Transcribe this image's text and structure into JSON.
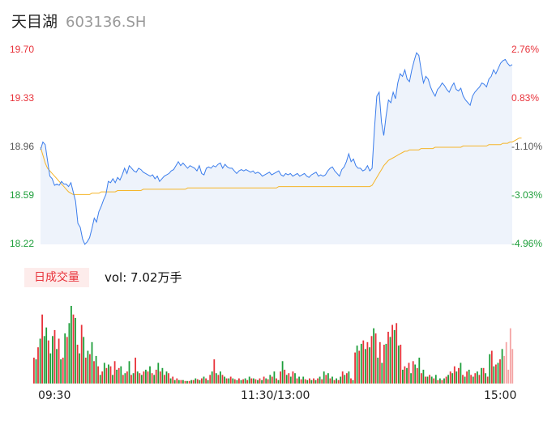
{
  "header": {
    "name": "天目湖",
    "code": "603136.SH"
  },
  "price_axis": {
    "prices": [
      "19.70",
      "19.33",
      "18.96",
      "18.59",
      "18.22"
    ],
    "percents": [
      "2.76%",
      "0.83%",
      "-1.10%",
      "-3.03%",
      "-4.96%"
    ]
  },
  "volume_panel": {
    "badge": "日成交量",
    "vol_text": "vol: 7.02万手"
  },
  "time_axis": {
    "start": "09:30",
    "mid": "11:30/13:00",
    "end": "15:00"
  },
  "colors": {
    "price_line": "#3b7dec",
    "avg_line": "#f5b52a",
    "up": "#e8323a",
    "down": "#1d9e3a",
    "flat": "#555555"
  },
  "chart_data": [
    {
      "type": "line",
      "title": "",
      "ylim": [
        18.22,
        19.7
      ],
      "grid": false,
      "series": [
        {
          "values": [
            18.94,
            19.0,
            18.98,
            18.86,
            18.74,
            18.72,
            18.67,
            18.68,
            18.67,
            18.7,
            18.68,
            18.68,
            18.66,
            18.69,
            18.62,
            18.55,
            18.38,
            18.35,
            18.26,
            18.22,
            18.24,
            18.27,
            18.34,
            18.42,
            18.39,
            18.47,
            18.51,
            18.56,
            18.6,
            18.7,
            18.69,
            18.72,
            18.69,
            18.73,
            18.71,
            18.75,
            18.8,
            18.76,
            18.82,
            18.8,
            18.78,
            18.77,
            18.8,
            18.79,
            18.77,
            18.76,
            18.75,
            18.74,
            18.75,
            18.72,
            18.74,
            18.7,
            18.72,
            18.74,
            18.75,
            18.76,
            18.78,
            18.79,
            18.82,
            18.85,
            18.82,
            18.84,
            18.82,
            18.8,
            18.82,
            18.81,
            18.8,
            18.78,
            18.82,
            18.76,
            18.75,
            18.8,
            18.81,
            18.8,
            18.82,
            18.81,
            18.83,
            18.84,
            18.8,
            18.83,
            18.81,
            18.8,
            18.8,
            18.78,
            18.76,
            18.78,
            18.79,
            18.78,
            18.79,
            18.78,
            18.77,
            18.78,
            18.76,
            18.77,
            18.76,
            18.74,
            18.75,
            18.76,
            18.77,
            18.75,
            18.76,
            18.77,
            18.78,
            18.75,
            18.74,
            18.76,
            18.75,
            18.76,
            18.74,
            18.75,
            18.76,
            18.74,
            18.75,
            18.76,
            18.74,
            18.73,
            18.75,
            18.76,
            18.77,
            18.74,
            18.75,
            18.74,
            18.75,
            18.78,
            18.8,
            18.81,
            18.78,
            18.76,
            18.74,
            18.79,
            18.81,
            18.85,
            18.91,
            18.85,
            18.87,
            18.82,
            18.8,
            18.8,
            18.78,
            18.79,
            18.82,
            18.78,
            18.8,
            19.1,
            19.35,
            19.38,
            19.15,
            19.05,
            19.2,
            19.32,
            19.3,
            19.38,
            19.33,
            19.45,
            19.52,
            19.5,
            19.55,
            19.48,
            19.46,
            19.55,
            19.62,
            19.68,
            19.66,
            19.55,
            19.45,
            19.5,
            19.48,
            19.42,
            19.38,
            19.35,
            19.4,
            19.42,
            19.45,
            19.43,
            19.4,
            19.38,
            19.42,
            19.45,
            19.4,
            19.39,
            19.41,
            19.35,
            19.32,
            19.3,
            19.28,
            19.35,
            19.38,
            19.4,
            19.42,
            19.45,
            19.44,
            19.42,
            19.48,
            19.5,
            19.55,
            19.52,
            19.56,
            19.6,
            19.62,
            19.63,
            19.6,
            19.58,
            19.59
          ]
        },
        {
          "values": [
            18.96,
            18.9,
            18.84,
            18.8,
            18.78,
            18.76,
            18.74,
            18.72,
            18.7,
            18.68,
            18.66,
            18.64,
            18.62,
            18.61,
            18.6,
            18.6,
            18.6,
            18.6,
            18.6,
            18.6,
            18.6,
            18.6,
            18.61,
            18.61,
            18.61,
            18.61,
            18.62,
            18.62,
            18.62,
            18.62,
            18.62,
            18.62,
            18.62,
            18.63,
            18.63,
            18.63,
            18.63,
            18.63,
            18.63,
            18.63,
            18.63,
            18.63,
            18.63,
            18.63,
            18.64,
            18.64,
            18.64,
            18.64,
            18.64,
            18.64,
            18.64,
            18.64,
            18.64,
            18.64,
            18.64,
            18.64,
            18.64,
            18.64,
            18.64,
            18.64,
            18.64,
            18.64,
            18.64,
            18.65,
            18.65,
            18.65,
            18.65,
            18.65,
            18.65,
            18.65,
            18.65,
            18.65,
            18.65,
            18.65,
            18.65,
            18.65,
            18.65,
            18.65,
            18.65,
            18.65,
            18.65,
            18.65,
            18.65,
            18.65,
            18.65,
            18.65,
            18.65,
            18.65,
            18.65,
            18.65,
            18.65,
            18.65,
            18.65,
            18.65,
            18.65,
            18.65,
            18.65,
            18.65,
            18.65,
            18.65,
            18.65,
            18.65,
            18.66,
            18.66,
            18.66,
            18.66,
            18.66,
            18.66,
            18.66,
            18.66,
            18.66,
            18.66,
            18.66,
            18.66,
            18.66,
            18.66,
            18.66,
            18.66,
            18.66,
            18.66,
            18.66,
            18.66,
            18.66,
            18.66,
            18.66,
            18.66,
            18.66,
            18.66,
            18.66,
            18.66,
            18.66,
            18.66,
            18.66,
            18.66,
            18.66,
            18.66,
            18.66,
            18.66,
            18.66,
            18.66,
            18.66,
            18.66,
            18.67,
            18.7,
            18.73,
            18.76,
            18.79,
            18.82,
            18.84,
            18.86,
            18.87,
            18.88,
            18.89,
            18.9,
            18.91,
            18.92,
            18.93,
            18.93,
            18.94,
            18.94,
            18.94,
            18.94,
            18.94,
            18.95,
            18.95,
            18.95,
            18.95,
            18.95,
            18.95,
            18.96,
            18.96,
            18.96,
            18.96,
            18.96,
            18.96,
            18.96,
            18.96,
            18.96,
            18.96,
            18.96,
            18.96,
            18.97,
            18.97,
            18.97,
            18.97,
            18.97,
            18.97,
            18.97,
            18.97,
            18.97,
            18.97,
            18.97,
            18.98,
            18.98,
            18.98,
            18.98,
            18.98,
            18.98,
            18.99,
            18.99,
            18.99,
            19.0,
            19.0,
            19.01,
            19.02,
            19.03,
            19.03
          ]
        }
      ]
    },
    {
      "type": "bar",
      "values": [
        30,
        28,
        42,
        52,
        80,
        55,
        65,
        50,
        35,
        55,
        62,
        40,
        52,
        28,
        30,
        58,
        54,
        70,
        90,
        80,
        76,
        45,
        35,
        68,
        54,
        30,
        38,
        34,
        48,
        26,
        32,
        20,
        10,
        14,
        24,
        18,
        22,
        20,
        10,
        26,
        16,
        18,
        20,
        10,
        12,
        14,
        26,
        10,
        12,
        30,
        14,
        12,
        10,
        14,
        16,
        14,
        20,
        12,
        10,
        16,
        24,
        14,
        18,
        10,
        14,
        12,
        6,
        8,
        4,
        6,
        4,
        4,
        4,
        3,
        3,
        3,
        4,
        4,
        6,
        5,
        4,
        6,
        8,
        6,
        4,
        10,
        14,
        28,
        12,
        10,
        14,
        10,
        8,
        6,
        6,
        8,
        6,
        5,
        4,
        6,
        4,
        5,
        6,
        4,
        8,
        6,
        6,
        5,
        4,
        6,
        4,
        8,
        6,
        5,
        10,
        8,
        14,
        6,
        4,
        14,
        26,
        16,
        10,
        12,
        8,
        14,
        12,
        6,
        8,
        5,
        8,
        5,
        4,
        6,
        4,
        6,
        4,
        6,
        8,
        5,
        14,
        10,
        12,
        6,
        8,
        4,
        6,
        4,
        8,
        14,
        10,
        12,
        14,
        6,
        4,
        36,
        44,
        38,
        46,
        50,
        40,
        48,
        42,
        55,
        64,
        58,
        30,
        48,
        24,
        45,
        46,
        60,
        54,
        68,
        62,
        70,
        44,
        45,
        16,
        20,
        18,
        24,
        12,
        26,
        22,
        18,
        30,
        12,
        16,
        8,
        8,
        10,
        8,
        6,
        10,
        4,
        6,
        4,
        6,
        8,
        10,
        14,
        12,
        20,
        14,
        18,
        24,
        10,
        8,
        14,
        16,
        10,
        8,
        12,
        14,
        10,
        18,
        18,
        12,
        8,
        34,
        38,
        20,
        22,
        24,
        28,
        40,
        32,
        48,
        16,
        64,
        40
      ],
      "dirs": [
        "u",
        "d",
        "u",
        "d",
        "u",
        "d",
        "d",
        "u",
        "d",
        "d",
        "u",
        "d",
        "u",
        "d",
        "u",
        "d",
        "u",
        "d",
        "d",
        "u",
        "d",
        "u",
        "d",
        "u",
        "d",
        "u",
        "d",
        "u",
        "d",
        "u",
        "d",
        "u",
        "d",
        "u",
        "d",
        "u",
        "d",
        "u",
        "d",
        "u",
        "d",
        "u",
        "d",
        "u",
        "d",
        "u",
        "d",
        "u",
        "d",
        "u",
        "d",
        "u",
        "d",
        "u",
        "d",
        "u",
        "d",
        "u",
        "d",
        "u",
        "d",
        "u",
        "d",
        "u",
        "d",
        "u",
        "d",
        "u",
        "d",
        "u",
        "d",
        "u",
        "d",
        "u",
        "d",
        "u",
        "d",
        "u",
        "d",
        "u",
        "d",
        "u",
        "d",
        "u",
        "d",
        "u",
        "d",
        "u",
        "d",
        "u",
        "d",
        "u",
        "d",
        "u",
        "d",
        "u",
        "d",
        "u",
        "d",
        "u",
        "d",
        "u",
        "d",
        "u",
        "d",
        "u",
        "d",
        "u",
        "d",
        "u",
        "d",
        "u",
        "d",
        "u",
        "d",
        "u",
        "d",
        "u",
        "d",
        "u",
        "d",
        "u",
        "d",
        "u",
        "d",
        "u",
        "d",
        "u",
        "d",
        "u",
        "d",
        "u",
        "d",
        "u",
        "d",
        "u",
        "d",
        "u",
        "d",
        "u",
        "d",
        "u",
        "d",
        "u",
        "d",
        "u",
        "d",
        "u",
        "d",
        "u",
        "d",
        "u",
        "d",
        "u",
        "d",
        "u",
        "d",
        "u",
        "d",
        "u",
        "d",
        "u",
        "d",
        "u",
        "d",
        "u",
        "d",
        "u",
        "d",
        "u",
        "d",
        "u",
        "d",
        "u",
        "d",
        "u",
        "d",
        "u",
        "d",
        "u",
        "d",
        "u",
        "d",
        "u",
        "d",
        "u",
        "d",
        "u",
        "d",
        "u",
        "d",
        "u",
        "d",
        "u",
        "d",
        "u",
        "d",
        "u",
        "d",
        "u",
        "d",
        "u",
        "d",
        "u",
        "d",
        "u",
        "d",
        "u",
        "d",
        "u",
        "d",
        "u",
        "d",
        "u",
        "d",
        "u",
        "d",
        "u",
        "d",
        "u",
        "d",
        "u",
        "d",
        "u",
        "d",
        "u",
        "d",
        "f"
      ]
    }
  ]
}
